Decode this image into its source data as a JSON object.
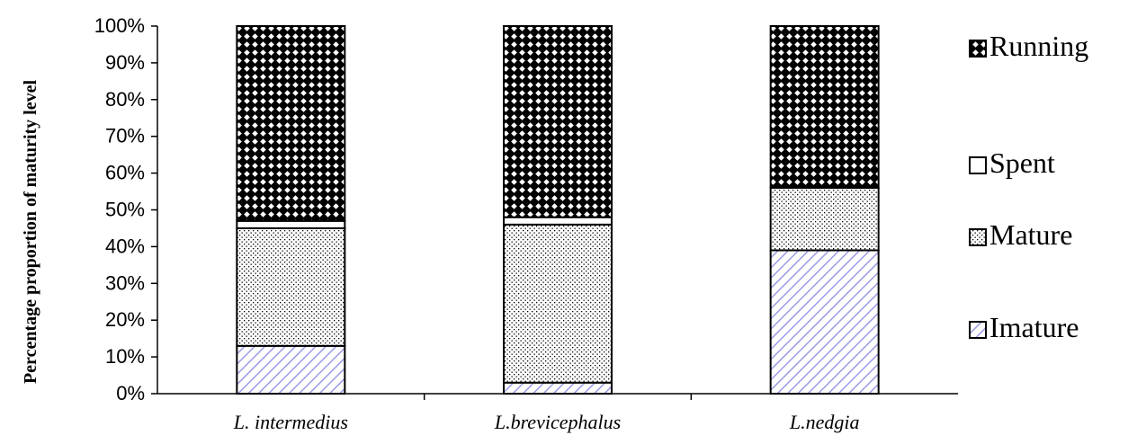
{
  "chart_data": {
    "type": "bar",
    "stacked": true,
    "percent": true,
    "ylabel": "Percentage  proportion of maturity level",
    "xlabel": "",
    "ylim": [
      0,
      100
    ],
    "yticks": [
      "0%",
      "10%",
      "20%",
      "30%",
      "40%",
      "50%",
      "60%",
      "70%",
      "80%",
      "90%",
      "100%"
    ],
    "categories": [
      "L. intermedius",
      "L.brevicephalus",
      "L.nedgia"
    ],
    "series": [
      {
        "name": "Imature",
        "values": [
          13,
          3,
          39
        ],
        "pattern": "diagonal",
        "color": "#9b9be6"
      },
      {
        "name": "Mature",
        "values": [
          32,
          43,
          17
        ],
        "pattern": "dots",
        "color": "#000000"
      },
      {
        "name": "Spent",
        "values": [
          2,
          2,
          0
        ],
        "pattern": "none",
        "color": "#ffffff"
      },
      {
        "name": "Running",
        "values": [
          53,
          52,
          44
        ],
        "pattern": "checker",
        "color": "#000000"
      }
    ],
    "legend": {
      "position": "right",
      "order": [
        "Running",
        "Spent",
        "Mature",
        "Imature"
      ]
    },
    "grid": false
  }
}
